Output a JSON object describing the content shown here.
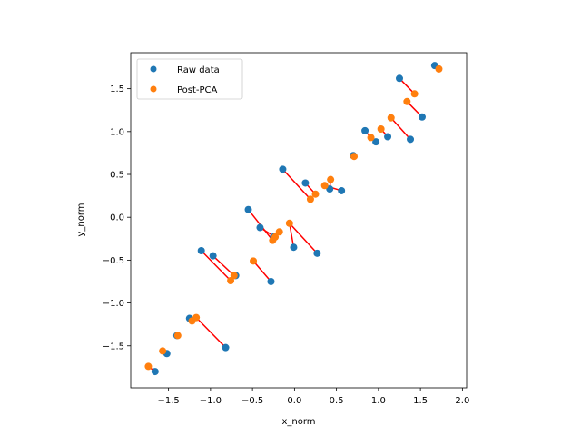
{
  "chart_data": {
    "type": "scatter",
    "title": "",
    "xlabel": "x_norm",
    "ylabel": "y_norm",
    "xlim": [
      -1.95,
      2.05
    ],
    "ylim": [
      -1.99,
      1.92
    ],
    "xticks": [
      -1.5,
      -1.0,
      -0.5,
      0.0,
      0.5,
      1.0,
      1.5,
      2.0
    ],
    "xtick_labels": [
      "−1.5",
      "−1.0",
      "−0.5",
      "0.0",
      "0.5",
      "1.0",
      "1.5",
      "2.0"
    ],
    "yticks": [
      -1.5,
      -1.0,
      -0.5,
      0.0,
      0.5,
      1.0,
      1.5
    ],
    "ytick_labels": [
      "−1.5",
      "−1.0",
      "−0.5",
      "0.0",
      "0.5",
      "1.0",
      "1.5"
    ],
    "grid": false,
    "legend_position": "top-left",
    "series": [
      {
        "name": "Raw data",
        "color": "#1f77b4",
        "points": [
          [
            -1.66,
            -1.8
          ],
          [
            -1.52,
            -1.59
          ],
          [
            -1.4,
            -1.38
          ],
          [
            -1.25,
            -1.18
          ],
          [
            -0.82,
            -1.52
          ],
          [
            -1.11,
            -0.39
          ],
          [
            -0.97,
            -0.45
          ],
          [
            -0.7,
            -0.68
          ],
          [
            -0.28,
            -0.75
          ],
          [
            -0.55,
            0.09
          ],
          [
            -0.41,
            -0.12
          ],
          [
            -0.25,
            -0.23
          ],
          [
            -0.01,
            -0.35
          ],
          [
            -0.14,
            0.56
          ],
          [
            0.13,
            0.4
          ],
          [
            0.27,
            -0.42
          ],
          [
            0.42,
            0.33
          ],
          [
            0.56,
            0.31
          ],
          [
            0.7,
            0.72
          ],
          [
            0.84,
            1.01
          ],
          [
            0.97,
            0.88
          ],
          [
            1.11,
            0.94
          ],
          [
            1.38,
            0.91
          ],
          [
            1.25,
            1.62
          ],
          [
            1.52,
            1.17
          ],
          [
            1.67,
            1.77
          ]
        ]
      },
      {
        "name": "Post-PCA",
        "color": "#ff7f0e",
        "points": [
          [
            -1.74,
            -1.74
          ],
          [
            -1.57,
            -1.56
          ],
          [
            -1.39,
            -1.38
          ],
          [
            -1.22,
            -1.21
          ],
          [
            -1.17,
            -1.17
          ],
          [
            -0.76,
            -0.74
          ],
          [
            -0.72,
            -0.68
          ],
          [
            -0.49,
            -0.51
          ],
          [
            -0.26,
            -0.27
          ],
          [
            -0.23,
            -0.23
          ],
          [
            -0.18,
            -0.17
          ],
          [
            -0.06,
            -0.07
          ],
          [
            0.19,
            0.21
          ],
          [
            0.25,
            0.27
          ],
          [
            0.36,
            0.37
          ],
          [
            0.43,
            0.44
          ],
          [
            0.71,
            0.71
          ],
          [
            0.91,
            0.93
          ],
          [
            1.03,
            1.03
          ],
          [
            1.15,
            1.16
          ],
          [
            1.34,
            1.35
          ],
          [
            1.43,
            1.44
          ],
          [
            1.72,
            1.73
          ]
        ]
      }
    ],
    "connector_color": "#ff0000",
    "connectors": [
      [
        -1.66,
        -1.8,
        -1.74,
        -1.74
      ],
      [
        -1.52,
        -1.59,
        -1.57,
        -1.56
      ],
      [
        -1.4,
        -1.38,
        -1.39,
        -1.38
      ],
      [
        -1.25,
        -1.18,
        -1.22,
        -1.21
      ],
      [
        -0.82,
        -1.52,
        -1.17,
        -1.17
      ],
      [
        -1.11,
        -0.39,
        -0.76,
        -0.74
      ],
      [
        -0.97,
        -0.45,
        -0.72,
        -0.68
      ],
      [
        -0.7,
        -0.68,
        -0.72,
        -0.68
      ],
      [
        -0.28,
        -0.75,
        -0.49,
        -0.51
      ],
      [
        -0.55,
        0.09,
        -0.26,
        -0.27
      ],
      [
        -0.41,
        -0.12,
        -0.23,
        -0.23
      ],
      [
        -0.25,
        -0.23,
        -0.18,
        -0.17
      ],
      [
        -0.01,
        -0.35,
        -0.06,
        -0.07
      ],
      [
        -0.14,
        0.56,
        0.19,
        0.21
      ],
      [
        0.13,
        0.4,
        0.25,
        0.27
      ],
      [
        0.27,
        -0.42,
        -0.06,
        -0.07
      ],
      [
        0.42,
        0.33,
        0.43,
        0.44
      ],
      [
        0.56,
        0.31,
        0.36,
        0.37
      ],
      [
        0.7,
        0.72,
        0.71,
        0.71
      ],
      [
        0.84,
        1.01,
        0.91,
        0.93
      ],
      [
        0.97,
        0.88,
        0.91,
        0.93
      ],
      [
        1.11,
        0.94,
        1.03,
        1.03
      ],
      [
        1.38,
        0.91,
        1.15,
        1.16
      ],
      [
        1.25,
        1.62,
        1.43,
        1.44
      ],
      [
        1.52,
        1.17,
        1.34,
        1.35
      ],
      [
        1.67,
        1.77,
        1.72,
        1.73
      ]
    ]
  }
}
